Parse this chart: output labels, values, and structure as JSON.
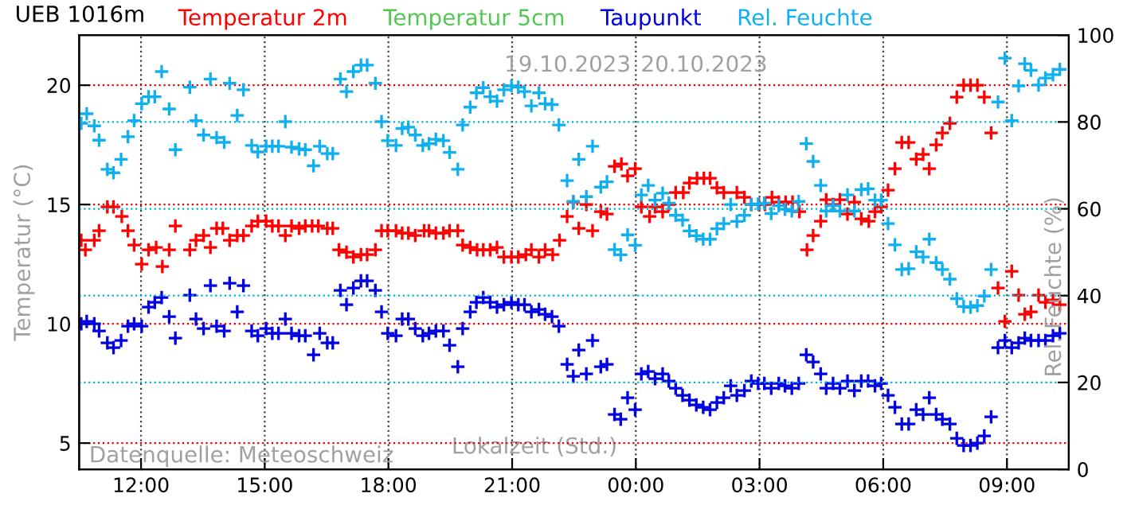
{
  "chart_data": {
    "type": "scatter",
    "title": "UEB 1016m",
    "xlabel": "Lokalzeit (Std.)",
    "ylabel": "Temperatur (°C)",
    "y2label": "Rel. Feuchte (%)",
    "annotations": [
      "19.10.2023",
      "20.10.2023",
      "Datenquelle: Meteoschweiz"
    ],
    "xlim": [
      "2023-10-19T10:30",
      "2023-10-20T10:30"
    ],
    "xticks": [
      {
        "value": "2023-10-19T12:00",
        "label": "12:00"
      },
      {
        "value": "2023-10-19T15:00",
        "label": "15:00"
      },
      {
        "value": "2023-10-19T18:00",
        "label": "18:00"
      },
      {
        "value": "2023-10-19T21:00",
        "label": "21:00"
      },
      {
        "value": "2023-10-20T00:00",
        "label": "00:00"
      },
      {
        "value": "2023-10-20T03:00",
        "label": "03:00"
      },
      {
        "value": "2023-10-20T06:00",
        "label": "06:00"
      },
      {
        "value": "2023-10-20T09:00",
        "label": "09:00"
      }
    ],
    "ylim": [
      3.9,
      22.1
    ],
    "yticks": [
      5,
      10,
      15,
      20
    ],
    "y2lim": [
      0,
      100
    ],
    "y2ticks": [
      0,
      20,
      40,
      60,
      80,
      100
    ],
    "grid": true,
    "legend": "top",
    "marker": "cross",
    "x": [
      "2023-10-19T10:33",
      "2023-10-19T10:41",
      "2023-10-19T10:52",
      "2023-10-19T10:59",
      "2023-10-19T11:11",
      "2023-10-19T11:20",
      "2023-10-19T11:31",
      "2023-10-19T11:41",
      "2023-10-19T11:50",
      "2023-10-19T12:01",
      "2023-10-19T12:11",
      "2023-10-19T12:20",
      "2023-10-19T12:30",
      "2023-10-19T12:41",
      "2023-10-19T12:50",
      "2023-10-19T13:11",
      "2023-10-19T13:20",
      "2023-10-19T13:31",
      "2023-10-19T13:41",
      "2023-10-19T13:50",
      "2023-10-19T14:01",
      "2023-10-19T14:09",
      "2023-10-19T14:20",
      "2023-10-19T14:29",
      "2023-10-19T14:41",
      "2023-10-19T14:50",
      "2023-10-19T15:02",
      "2023-10-19T15:11",
      "2023-10-19T15:20",
      "2023-10-19T15:30",
      "2023-10-19T15:39",
      "2023-10-19T15:50",
      "2023-10-19T15:59",
      "2023-10-19T16:11",
      "2023-10-19T16:20",
      "2023-10-19T16:31",
      "2023-10-19T16:39",
      "2023-10-19T16:50",
      "2023-10-19T16:59",
      "2023-10-19T17:09",
      "2023-10-19T17:20",
      "2023-10-19T17:29",
      "2023-10-19T17:41",
      "2023-10-19T17:50",
      "2023-10-19T17:59",
      "2023-10-19T18:11",
      "2023-10-19T18:20",
      "2023-10-19T18:29",
      "2023-10-19T18:39",
      "2023-10-19T18:50",
      "2023-10-19T18:59",
      "2023-10-19T19:09",
      "2023-10-19T19:20",
      "2023-10-19T19:29",
      "2023-10-19T19:41",
      "2023-10-19T19:48",
      "2023-10-19T19:59",
      "2023-10-19T20:08",
      "2023-10-19T20:18",
      "2023-10-19T20:28",
      "2023-10-19T20:38",
      "2023-10-19T20:48",
      "2023-10-19T20:59",
      "2023-10-19T21:09",
      "2023-10-19T21:18",
      "2023-10-19T21:28",
      "2023-10-19T21:39",
      "2023-10-19T21:48",
      "2023-10-19T21:58",
      "2023-10-19T22:08",
      "2023-10-19T22:20",
      "2023-10-19T22:29",
      "2023-10-19T22:37",
      "2023-10-19T22:48",
      "2023-10-19T22:57",
      "2023-10-19T23:09",
      "2023-10-19T23:18",
      "2023-10-19T23:29",
      "2023-10-19T23:38",
      "2023-10-19T23:48",
      "2023-10-19T23:59",
      "2023-10-20T00:08",
      "2023-10-20T00:18",
      "2023-10-20T00:28",
      "2023-10-20T00:39",
      "2023-10-20T00:48",
      "2023-10-20T00:58",
      "2023-10-20T01:08",
      "2023-10-20T01:18",
      "2023-10-20T01:28",
      "2023-10-20T01:38",
      "2023-10-20T01:48",
      "2023-10-20T01:58",
      "2023-10-20T02:08",
      "2023-10-20T02:18",
      "2023-10-20T02:27",
      "2023-10-20T02:38",
      "2023-10-20T02:48",
      "2023-10-20T02:58",
      "2023-10-20T03:07",
      "2023-10-20T03:17",
      "2023-10-20T03:28",
      "2023-10-20T03:37",
      "2023-10-20T03:47",
      "2023-10-20T03:57",
      "2023-10-20T04:08",
      "2023-10-20T04:18",
      "2023-10-20T04:29",
      "2023-10-20T04:37",
      "2023-10-20T04:47",
      "2023-10-20T04:57",
      "2023-10-20T05:08",
      "2023-10-20T05:18",
      "2023-10-20T05:28",
      "2023-10-20T05:38",
      "2023-10-20T05:48",
      "2023-10-20T05:57",
      "2023-10-20T06:07",
      "2023-10-20T06:17",
      "2023-10-20T06:27",
      "2023-10-20T06:37",
      "2023-10-20T06:48",
      "2023-10-20T06:58",
      "2023-10-20T07:07",
      "2023-10-20T07:17",
      "2023-10-20T07:26",
      "2023-10-20T07:37",
      "2023-10-20T07:47",
      "2023-10-20T07:57",
      "2023-10-20T08:07",
      "2023-10-20T08:17",
      "2023-10-20T08:27",
      "2023-10-20T08:37",
      "2023-10-20T08:47",
      "2023-10-20T08:57",
      "2023-10-20T09:07",
      "2023-10-20T09:17",
      "2023-10-20T09:26",
      "2023-10-20T09:35",
      "2023-10-20T09:46",
      "2023-10-20T09:56",
      "2023-10-20T10:07",
      "2023-10-20T10:17"
    ],
    "series": [
      {
        "name": "Temperatur 2m",
        "color": "#ff0000",
        "x": [
          "2023-10-19T10:33",
          "2023-10-19T10:39",
          "2023-10-19T10:52",
          "2023-10-19T10:59",
          "2023-10-19T11:11",
          "2023-10-19T11:20",
          "2023-10-19T11:32",
          "2023-10-19T11:41",
          "2023-10-19T11:50",
          "2023-10-19T12:01",
          "2023-10-19T12:11",
          "2023-10-19T12:22",
          "2023-10-19T12:31",
          "2023-10-19T12:41",
          "2023-10-19T12:50",
          "2023-10-19T13:11",
          "2023-10-19T13:20",
          "2023-10-19T13:31",
          "2023-10-19T13:41",
          "2023-10-19T13:50",
          "2023-10-19T13:59",
          "2023-10-19T14:09",
          "2023-10-19T14:20",
          "2023-10-19T14:29",
          "2023-10-19T14:41",
          "2023-10-19T14:50",
          "2023-10-19T15:02",
          "2023-10-19T15:11",
          "2023-10-19T15:20",
          "2023-10-19T15:30",
          "2023-10-19T15:39",
          "2023-10-19T15:50",
          "2023-10-19T15:59",
          "2023-10-19T16:09",
          "2023-10-19T16:18",
          "2023-10-19T16:31",
          "2023-10-19T16:39",
          "2023-10-19T16:48",
          "2023-10-19T16:59",
          "2023-10-19T17:09",
          "2023-10-19T17:20",
          "2023-10-19T17:29",
          "2023-10-19T17:41",
          "2023-10-19T17:50",
          "2023-10-19T17:59",
          "2023-10-19T18:11",
          "2023-10-19T18:20",
          "2023-10-19T18:29",
          "2023-10-19T18:39",
          "2023-10-19T18:52",
          "2023-10-19T18:59",
          "2023-10-19T19:09",
          "2023-10-19T19:20",
          "2023-10-19T19:29",
          "2023-10-19T19:41",
          "2023-10-19T19:48",
          "2023-10-19T19:59",
          "2023-10-19T20:09",
          "2023-10-19T20:18",
          "2023-10-19T20:28",
          "2023-10-19T20:38",
          "2023-10-19T20:48",
          "2023-10-19T20:59",
          "2023-10-19T21:09",
          "2023-10-19T21:20",
          "2023-10-19T21:28",
          "2023-10-19T21:39",
          "2023-10-19T21:48",
          "2023-10-19T21:59",
          "2023-10-19T22:09",
          "2023-10-19T22:20",
          "2023-10-19T22:29",
          "2023-10-19T22:37",
          "2023-10-19T22:48",
          "2023-10-19T22:57",
          "2023-10-19T23:09",
          "2023-10-19T23:18",
          "2023-10-19T23:29",
          "2023-10-19T23:39",
          "2023-10-19T23:48",
          "2023-10-19T23:59",
          "2023-10-20T00:08",
          "2023-10-20T00:20",
          "2023-10-20T00:28",
          "2023-10-20T00:39",
          "2023-10-20T00:48",
          "2023-10-20T00:58",
          "2023-10-20T01:09",
          "2023-10-20T01:18",
          "2023-10-20T01:29",
          "2023-10-20T01:39",
          "2023-10-20T01:48",
          "2023-10-20T01:58",
          "2023-10-20T02:08",
          "2023-10-20T02:27",
          "2023-10-20T02:38",
          "2023-10-20T02:48",
          "2023-10-20T02:59",
          "2023-10-20T03:08",
          "2023-10-20T03:18",
          "2023-10-20T03:28",
          "2023-10-20T03:38",
          "2023-10-20T03:48",
          "2023-10-20T03:58",
          "2023-10-20T04:09",
          "2023-10-20T04:18",
          "2023-10-20T04:29",
          "2023-10-20T04:37",
          "2023-10-20T04:47",
          "2023-10-20T04:57",
          "2023-10-20T05:08",
          "2023-10-20T05:18",
          "2023-10-20T05:28",
          "2023-10-20T05:39",
          "2023-10-20T05:48",
          "2023-10-20T05:57",
          "2023-10-20T06:07",
          "2023-10-20T06:17",
          "2023-10-20T06:27",
          "2023-10-20T06:37",
          "2023-10-20T06:48",
          "2023-10-20T06:58",
          "2023-10-20T07:07",
          "2023-10-20T07:17",
          "2023-10-20T07:26",
          "2023-10-20T07:37",
          "2023-10-20T07:47",
          "2023-10-20T07:57",
          "2023-10-20T08:07",
          "2023-10-20T08:17",
          "2023-10-20T08:27",
          "2023-10-20T08:37",
          "2023-10-20T08:47",
          "2023-10-20T08:57",
          "2023-10-20T09:07",
          "2023-10-20T09:17",
          "2023-10-20T09:26",
          "2023-10-20T09:35",
          "2023-10-20T09:46",
          "2023-10-20T09:56",
          "2023-10-20T10:07",
          "2023-10-20T10:17"
        ],
        "values": [
          13.5,
          13.1,
          13.5,
          13.9,
          14.9,
          14.9,
          14.5,
          13.9,
          13.3,
          12.5,
          13.1,
          13.2,
          12.4,
          13.1,
          14.1,
          13.1,
          13.5,
          13.7,
          13.2,
          14.0,
          14.0,
          13.5,
          13.7,
          13.7,
          14.1,
          14.3,
          14.3,
          14.1,
          14.1,
          13.7,
          14.1,
          14.0,
          14.1,
          14.1,
          14.1,
          14.0,
          14.0,
          13.1,
          13.0,
          12.8,
          12.9,
          12.9,
          13.1,
          13.9,
          13.9,
          13.9,
          13.8,
          13.8,
          13.7,
          13.9,
          13.9,
          13.8,
          13.8,
          13.9,
          13.9,
          13.3,
          13.2,
          13.1,
          13.1,
          13.1,
          13.2,
          12.8,
          12.8,
          12.8,
          12.9,
          13.1,
          12.8,
          13.1,
          12.9,
          13.5,
          14.5,
          15.1,
          14.0,
          15.0,
          13.9,
          14.7,
          14.6,
          16.6,
          16.7,
          16.2,
          16.5,
          14.9,
          14.5,
          14.9,
          14.7,
          15.0,
          15.5,
          15.5,
          15.9,
          16.1,
          16.1,
          16.1,
          15.7,
          15.5,
          15.5,
          15.3,
          15.0,
          15.0,
          15.0,
          15.3,
          15.1,
          15.1,
          15.1,
          14.7,
          13.1,
          13.7,
          14.3,
          15.2,
          15.0,
          15.2,
          14.6,
          15.1,
          14.4,
          14.3,
          14.7,
          14.9,
          15.6,
          16.5,
          17.6,
          17.6,
          16.9,
          17.1,
          16.5,
          17.5,
          18.0,
          18.4,
          19.5,
          20.0,
          20.0,
          20.0,
          19.5,
          18.0,
          11.5,
          10.1,
          12.2,
          11.2,
          10.4,
          10.5,
          11.2,
          10.9,
          11.0,
          10.8
        ]
      },
      {
        "name": "Temperatur 5cm",
        "color": "#50c850",
        "values": [
          null,
          null,
          null,
          null,
          null,
          null,
          null,
          null,
          null,
          null,
          null,
          null,
          null,
          null,
          null,
          null,
          null,
          null,
          null,
          null,
          null,
          null,
          null,
          null,
          null,
          null,
          null,
          null,
          null,
          null,
          null,
          null,
          null,
          null,
          null,
          null,
          null,
          null,
          null,
          null,
          null,
          null,
          null,
          null,
          null,
          null,
          null,
          null,
          null,
          null,
          null,
          null,
          null,
          null,
          null,
          null,
          null,
          null,
          null,
          null,
          null,
          null,
          null,
          null,
          null,
          null,
          null,
          null,
          null,
          null,
          null,
          null,
          null,
          null,
          null,
          null,
          null,
          null,
          null,
          null,
          null,
          null,
          null,
          null,
          null,
          null,
          null,
          null,
          null,
          null,
          null,
          null,
          null,
          null,
          null,
          null,
          null,
          null,
          null,
          null,
          null,
          null,
          null,
          null,
          null,
          null,
          null,
          null,
          null,
          null,
          null,
          null,
          null,
          null,
          null,
          null,
          null,
          null,
          null,
          null,
          null,
          null,
          null,
          null,
          null,
          null,
          null,
          null,
          null,
          null,
          null,
          null,
          null,
          null,
          null,
          null,
          null,
          null,
          null,
          null,
          null,
          null,
          null
        ]
      },
      {
        "name": "Taupunkt",
        "color": "#0000e0",
        "values": [
          10.0,
          10.1,
          10.0,
          9.7,
          9.2,
          9.0,
          9.3,
          9.9,
          10.0,
          9.9,
          10.7,
          10.9,
          11.1,
          10.3,
          9.4,
          11.2,
          10.2,
          9.8,
          11.6,
          9.9,
          9.7,
          11.7,
          10.5,
          11.6,
          9.7,
          9.5,
          9.8,
          9.6,
          9.6,
          10.2,
          9.6,
          9.5,
          9.5,
          8.7,
          9.6,
          9.2,
          9.2,
          11.4,
          10.8,
          11.5,
          11.8,
          11.8,
          11.4,
          10.5,
          9.6,
          9.5,
          10.2,
          10.2,
          9.8,
          9.5,
          9.6,
          9.7,
          9.7,
          9.1,
          8.2,
          9.8,
          10.5,
          10.9,
          11.1,
          10.9,
          10.7,
          10.8,
          10.9,
          10.8,
          10.8,
          10.5,
          10.6,
          10.4,
          10.3,
          9.9,
          8.3,
          7.8,
          8.9,
          7.9,
          9.3,
          8.2,
          8.3,
          6.2,
          6.0,
          6.9,
          6.4,
          7.9,
          8.0,
          7.7,
          7.9,
          7.6,
          7.3,
          7.0,
          6.8,
          6.6,
          6.5,
          6.4,
          6.7,
          6.9,
          7.4,
          7.0,
          7.2,
          7.6,
          7.5,
          7.5,
          7.3,
          7.5,
          7.4,
          7.3,
          7.5,
          8.7,
          8.4,
          7.9,
          7.3,
          7.5,
          7.3,
          7.6,
          7.2,
          7.6,
          7.6,
          7.4,
          7.5,
          7.0,
          6.5,
          5.8,
          5.8,
          6.4,
          6.2,
          6.9,
          6.2,
          6.0,
          5.8,
          5.2,
          4.9,
          4.9,
          5.0,
          5.3,
          6.1,
          9.0,
          9.3,
          9.0,
          9.2,
          9.4,
          9.3,
          9.3,
          9.3,
          9.5,
          9.6
        ]
      },
      {
        "name": "Rel. Feuchte",
        "color": "#10b0f0",
        "axis": "y2",
        "values": [
          79.7,
          81.9,
          79.1,
          75.8,
          69.1,
          68.3,
          71.4,
          76.6,
          80.3,
          84.2,
          85.8,
          85.8,
          91.6,
          83.0,
          73.6,
          88.0,
          80.3,
          77.0,
          89.9,
          76.4,
          75.3,
          88.9,
          81.5,
          87.4,
          74.6,
          73.1,
          74.4,
          74.4,
          74.4,
          80.1,
          74.2,
          73.8,
          73.6,
          69.9,
          74.4,
          72.7,
          72.7,
          89.9,
          87.0,
          91.6,
          93.1,
          93.1,
          88.9,
          80.1,
          75.7,
          74.6,
          78.5,
          78.8,
          77.0,
          74.6,
          75.0,
          76.0,
          75.7,
          73.0,
          69.1,
          79.3,
          83.4,
          86.7,
          87.9,
          85.8,
          84.8,
          87.4,
          88.3,
          88.0,
          87.0,
          83.7,
          86.7,
          84.2,
          84.0,
          79.3,
          66.5,
          61.7,
          71.4,
          62.8,
          74.4,
          65.0,
          66.2,
          50.6,
          49.4,
          54.0,
          51.6,
          63.2,
          65.4,
          62.0,
          63.6,
          61.3,
          58.5,
          57.4,
          54.9,
          53.8,
          53.0,
          53.0,
          55.4,
          56.6,
          61.0,
          57.1,
          58.5,
          61.0,
          61.1,
          61.3,
          58.9,
          60.7,
          59.9,
          59.5,
          61.7,
          75.0,
          70.9,
          65.4,
          59.5,
          60.7,
          59.5,
          63.2,
          59.5,
          64.4,
          64.6,
          62.0,
          62.0,
          56.6,
          51.7,
          46.0,
          46.2,
          50.1,
          48.9,
          53.0,
          47.6,
          46.0,
          43.8,
          39.3,
          37.5,
          37.3,
          37.7,
          39.9,
          46.0,
          84.6,
          94.7,
          80.3,
          88.3,
          93.4,
          91.9,
          88.5,
          90.1,
          90.9,
          92.1
        ]
      }
    ]
  }
}
